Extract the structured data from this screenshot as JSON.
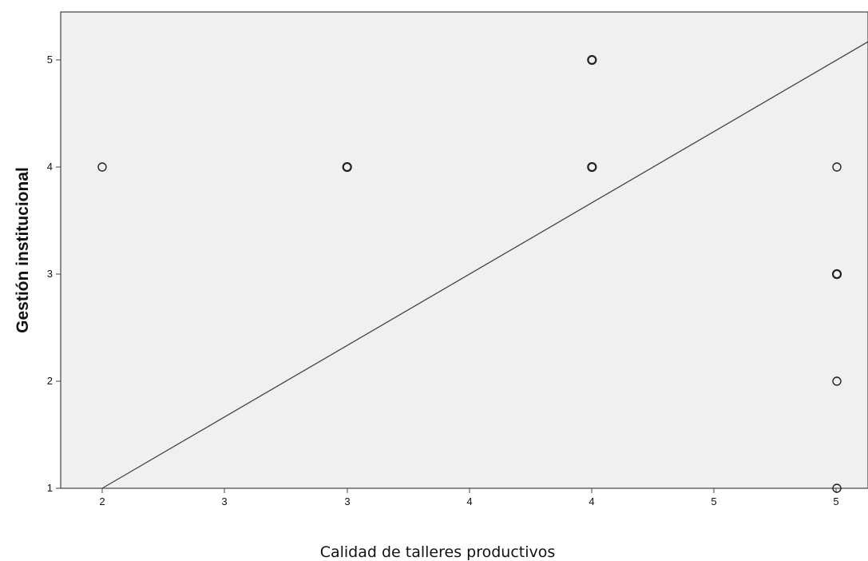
{
  "chart_data": {
    "type": "scatter",
    "title": "",
    "xlabel": "Calidad de talleres productivos",
    "ylabel": "Gestión institucional",
    "x_ticks": [
      "2",
      "3",
      "3",
      "4",
      "4",
      "5",
      "5"
    ],
    "y_ticks": [
      "1",
      "2",
      "3",
      "4",
      "5"
    ],
    "ylim": [
      1,
      5.45
    ],
    "grid": false,
    "legend": "none",
    "colors": {
      "plot_background": "#f0f0f0",
      "marker": "#222222",
      "fit_line": "#444444"
    },
    "points": [
      {
        "x": 2,
        "y": 4
      },
      {
        "x": 3,
        "y": 4
      },
      {
        "x": 4,
        "y": 5
      },
      {
        "x": 4,
        "y": 4
      },
      {
        "x": 5,
        "y": 4
      },
      {
        "x": 5,
        "y": 3
      },
      {
        "x": 5,
        "y": 2
      },
      {
        "x": 5,
        "y": 1
      }
    ],
    "fit_line": {
      "x": [
        2,
        5.15
      ],
      "y": [
        1,
        5.17
      ]
    }
  }
}
